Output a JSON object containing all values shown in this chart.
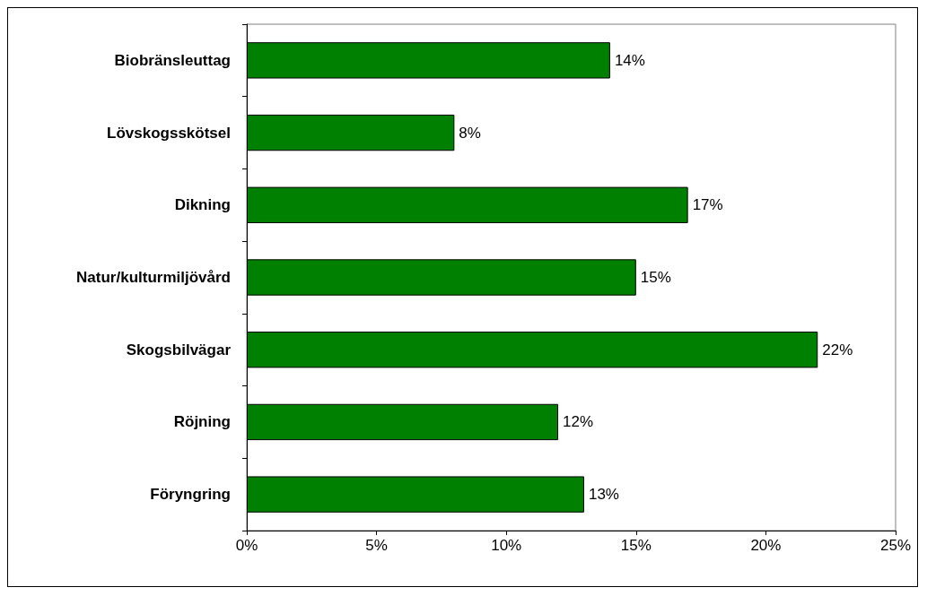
{
  "chart_data": {
    "type": "bar",
    "orientation": "horizontal",
    "categories": [
      "Biobränsleuttag",
      "Lövskogsskötsel",
      "Dikning",
      "Natur/kulturmiljövård",
      "Skogsbilvägar",
      "Röjning",
      "Föryngring"
    ],
    "values": [
      14,
      8,
      17,
      15,
      22,
      12,
      13
    ],
    "value_labels": [
      "14%",
      "8%",
      "17%",
      "15%",
      "22%",
      "12%",
      "13%"
    ],
    "color": "#008000",
    "xlim": [
      0,
      25
    ],
    "xticks": [
      {
        "value": 0,
        "label": "0%"
      },
      {
        "value": 5,
        "label": "5%"
      },
      {
        "value": 10,
        "label": "10%"
      },
      {
        "value": 15,
        "label": "15%"
      },
      {
        "value": 20,
        "label": "20%"
      },
      {
        "value": 25,
        "label": "25%"
      }
    ],
    "grid": false
  }
}
